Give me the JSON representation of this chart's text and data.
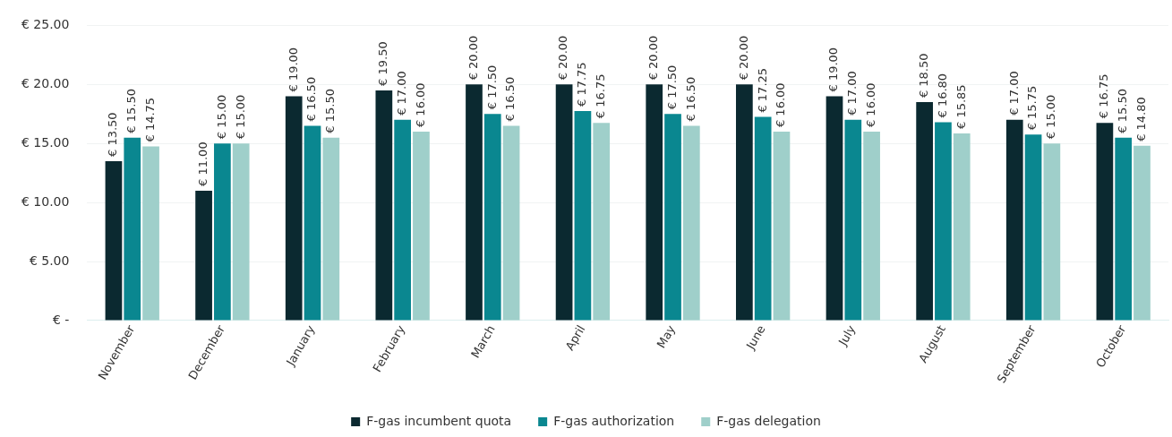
{
  "chart_data": {
    "type": "bar",
    "categories": [
      "November",
      "December",
      "January",
      "February",
      "March",
      "April",
      "May",
      "June",
      "July",
      "August",
      "September",
      "October"
    ],
    "series": [
      {
        "name": "F-gas incumbent quota",
        "color": "#0b2930",
        "values": [
          13.5,
          11,
          19,
          19.5,
          20,
          20,
          20,
          20,
          19,
          18.5,
          17,
          16.75
        ],
        "value_labels": [
          "€ 13.50",
          "€ 11.00",
          "€ 19.00",
          "€ 19.50",
          "€ 20.00",
          "€ 20.00",
          "€ 20.00",
          "€ 20.00",
          "€ 19.00",
          "€ 18.50",
          "€ 17.00",
          "€ 16.75"
        ]
      },
      {
        "name": "F-gas authorization",
        "color": "#0a8790",
        "values": [
          15.5,
          15,
          16.5,
          17,
          17.5,
          17.75,
          17.5,
          17.25,
          17,
          16.8,
          15.75,
          15.5
        ],
        "value_labels": [
          "€ 15.50",
          "€ 15.00",
          "€ 16.50",
          "€ 17.00",
          "€ 17.50",
          "€ 17.75",
          "€ 17.50",
          "€ 17.25",
          "€ 17.00",
          "€ 16.80",
          "€ 15.75",
          "€ 15.50"
        ]
      },
      {
        "name": "F-gas delegation",
        "color": "#9fcfca",
        "values": [
          14.75,
          15,
          15.5,
          16,
          16.5,
          16.75,
          16.5,
          16,
          16,
          15.85,
          15,
          14.8
        ],
        "value_labels": [
          "€ 14.75",
          "€ 15.00",
          "€ 15.50",
          "€ 16.00",
          "€ 16.50",
          "€ 16.75",
          "€ 16.50",
          "€ 16.00",
          "€ 16.00",
          "€ 15.85",
          "€ 15.00",
          "€ 14.80"
        ]
      }
    ],
    "ylim": [
      0,
      25
    ],
    "yticks": [
      {
        "value": 0,
        "label": "€ -"
      },
      {
        "value": 5,
        "label": "€ 5.00"
      },
      {
        "value": 10,
        "label": "€ 10.00"
      },
      {
        "value": 15,
        "label": "€ 15.00"
      },
      {
        "value": 20,
        "label": "€ 20.00"
      },
      {
        "value": 25,
        "label": "€ 25.00"
      }
    ],
    "grid": "y",
    "legend": "bottom"
  }
}
